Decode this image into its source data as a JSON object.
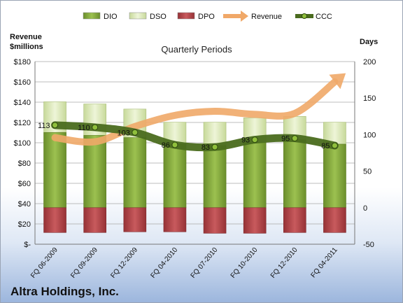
{
  "company": "Altra Holdings, Inc.",
  "chart_data": {
    "type": "bar",
    "title": "Quarterly Periods",
    "y_left_label": [
      "Revenue",
      "$millions"
    ],
    "y_right_label": "Days",
    "y_left_range": [
      0,
      180
    ],
    "y_left_ticks": [
      "$-",
      "$20",
      "$40",
      "$60",
      "$80",
      "$100",
      "$120",
      "$140",
      "$160",
      "$180"
    ],
    "y_right_range": [
      -50,
      200
    ],
    "y_right_ticks": [
      "-50",
      "0",
      "50",
      "100",
      "150",
      "200"
    ],
    "grid": true,
    "legend_position": "top",
    "categories": [
      "FQ 06-2009",
      "FQ 09-2009",
      "FQ 12-2009",
      "FQ 04-2010",
      "FQ 07-2010",
      "FQ 10-2010",
      "FQ 12-2010",
      "FQ 04-2011"
    ],
    "series": [
      {
        "name": "DIO",
        "kind": "bar",
        "axis": "right",
        "color": "#7ea33a",
        "values": [
          103,
          99,
          96,
          87,
          85,
          89,
          93,
          87
        ]
      },
      {
        "name": "DSO",
        "kind": "bar",
        "axis": "right",
        "color": "#dbe8b8",
        "values": [
          145,
          142,
          135,
          117,
          117,
          123,
          125,
          117
        ]
      },
      {
        "name": "DPO",
        "kind": "bar",
        "axis": "right",
        "color": "#b5474a",
        "values": [
          -34,
          -34,
          -33,
          -33,
          -35,
          -35,
          -34,
          -34
        ]
      },
      {
        "name": "Revenue",
        "kind": "arrow",
        "axis": "left",
        "color": "#f0a868",
        "values": [
          105,
          101,
          116,
          127,
          131,
          128,
          129,
          160
        ]
      },
      {
        "name": "CCC",
        "kind": "line",
        "axis": "right",
        "color": "#4a6b1e",
        "values": [
          113,
          110,
          103,
          86,
          83,
          93,
          95,
          85
        ],
        "labels": [
          "113",
          "110",
          "103",
          "86",
          "83",
          "93",
          "95",
          "85"
        ]
      }
    ]
  }
}
